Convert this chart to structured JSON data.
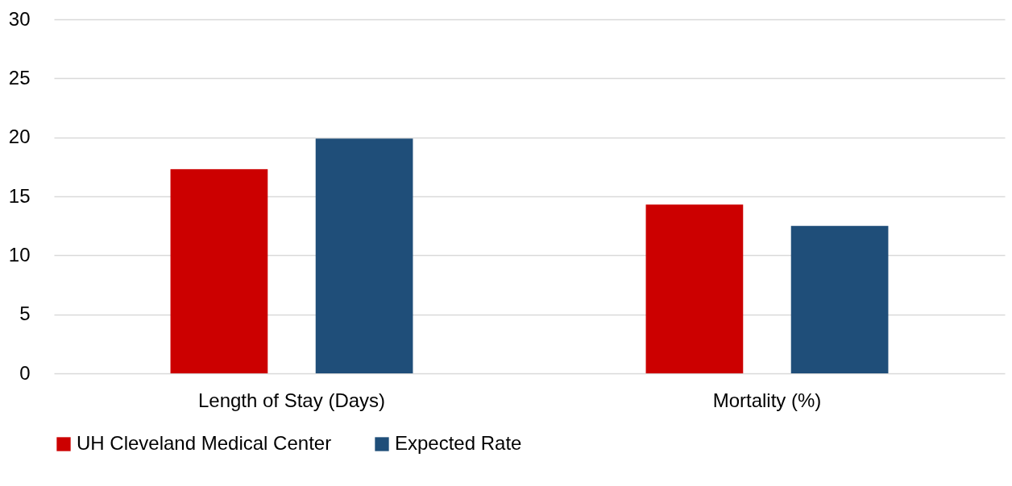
{
  "chart_data": {
    "type": "bar",
    "categories": [
      "Length of Stay (Days)",
      "Mortality (%)"
    ],
    "series": [
      {
        "name": "UH Cleveland Medical Center",
        "color": "#cc0000",
        "values": [
          17.3,
          14.3
        ]
      },
      {
        "name": "Expected Rate",
        "color": "#1f4e79",
        "values": [
          19.9,
          12.5
        ]
      }
    ],
    "ylim": [
      0,
      30
    ],
    "yticks": [
      0,
      5,
      10,
      15,
      20,
      25,
      30
    ],
    "grid": "y",
    "legend": "bottom"
  }
}
